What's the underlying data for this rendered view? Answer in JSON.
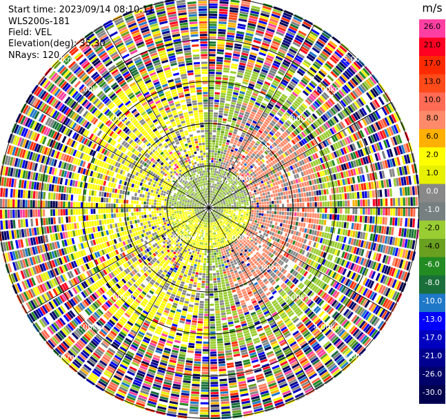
{
  "header": {
    "start_time": "Start time: 2023/09/14 08:10:11",
    "instrument": "WLS200s-181",
    "field": "Field: VEL",
    "elevation": "Elevation(deg): 35.30",
    "nrays": "NRays: 120"
  },
  "chart_data": {
    "type": "heatmap",
    "projection": "polar-ppi",
    "field": "VEL",
    "n_rays": 120,
    "range_rings": [
      "1.00km",
      "2.00km",
      "3.00km",
      "4.00km",
      "5.00km"
    ],
    "range_ring_km": [
      1,
      2,
      3,
      4,
      5
    ],
    "colorbar": {
      "unit": "m/s",
      "ticks": [
        "26.0",
        "21.0",
        "17.0",
        "13.0",
        "10.0",
        "8.0",
        "6.0",
        "2.0",
        "1.0",
        "0.0",
        "-1.0",
        "-2.0",
        "-4.0",
        "-6.0",
        "-8.0",
        "-10.0",
        "-13.0",
        "-17.0",
        "-21.0",
        "-26.0",
        "-30.0"
      ],
      "tick_values": [
        26,
        21,
        17,
        13,
        10,
        8,
        6,
        2,
        1,
        0,
        -1,
        -2,
        -4,
        -6,
        -8,
        -10,
        -13,
        -17,
        -21,
        -26,
        -30
      ],
      "colors": [
        "#ff3fa2",
        "#ff0022",
        "#ff2a00",
        "#ff4a1a",
        "#ff6b55",
        "#ff8a6a",
        "#ffb000",
        "#ffff00",
        "#e6f000",
        "#888888",
        "#778080",
        "#9acd32",
        "#6aa020",
        "#228b22",
        "#1a6f3a",
        "#1f78c8",
        "#0000ff",
        "#0000c0",
        "#000090",
        "#00006a",
        "#000050"
      ]
    },
    "pattern": {
      "inner_velocity_ms": 0.0,
      "north_inner_ms": -2.0,
      "south_inner_ms": 2.0,
      "east_ring_ms": 8.0,
      "west_ring_ms": 2.0,
      "outer_noise": true
    }
  }
}
